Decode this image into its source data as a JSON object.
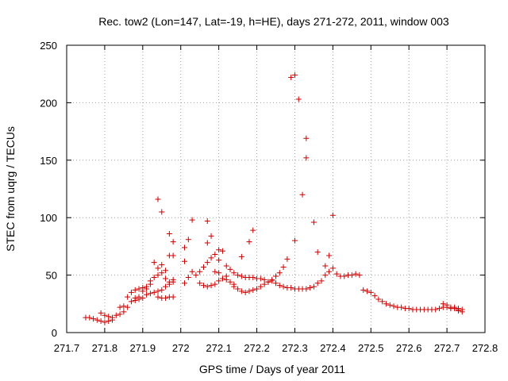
{
  "chart_data": {
    "type": "scatter",
    "title": "Rec. tow2 (Lon=147, Lat=-19, h=HE), days 271-272, 2011, window 003",
    "xlabel": "GPS time / Days of year 2011",
    "ylabel": "STEC from uqrg / TECUs",
    "xlim": [
      271.7,
      272.8
    ],
    "ylim": [
      0,
      250
    ],
    "x_ticks": [
      "271.7",
      "271.8",
      "271.9",
      "272",
      "272.1",
      "272.2",
      "272.3",
      "272.4",
      "272.5",
      "272.6",
      "272.7",
      "272.8"
    ],
    "y_ticks": [
      "0",
      "50",
      "100",
      "150",
      "200",
      "250"
    ],
    "grid": true,
    "marker": "+",
    "color": "#cc0000",
    "series": [
      {
        "points": [
          [
            271.75,
            13
          ],
          [
            271.76,
            13
          ],
          [
            271.77,
            12
          ],
          [
            271.78,
            11
          ],
          [
            271.79,
            10
          ],
          [
            271.8,
            9
          ],
          [
            271.81,
            10
          ],
          [
            271.82,
            11
          ],
          [
            271.79,
            17
          ],
          [
            271.8,
            15
          ],
          [
            271.81,
            14
          ],
          [
            271.82,
            13
          ],
          [
            271.83,
            15
          ],
          [
            271.84,
            16
          ],
          [
            271.85,
            18
          ],
          [
            271.84,
            22
          ],
          [
            271.85,
            23
          ],
          [
            271.86,
            22
          ],
          [
            271.87,
            27
          ],
          [
            271.88,
            30
          ],
          [
            271.89,
            31
          ],
          [
            271.86,
            31
          ],
          [
            271.87,
            35
          ],
          [
            271.88,
            37
          ],
          [
            271.89,
            38
          ],
          [
            271.9,
            39
          ],
          [
            271.91,
            40
          ],
          [
            271.92,
            42
          ],
          [
            271.88,
            28
          ],
          [
            271.89,
            29
          ],
          [
            271.9,
            30
          ],
          [
            271.91,
            33
          ],
          [
            271.92,
            34
          ],
          [
            271.93,
            35
          ],
          [
            271.94,
            36
          ],
          [
            271.95,
            37
          ],
          [
            271.9,
            36
          ],
          [
            271.91,
            38
          ],
          [
            271.92,
            45
          ],
          [
            271.93,
            48
          ],
          [
            271.94,
            50
          ],
          [
            271.95,
            52
          ],
          [
            271.96,
            54
          ],
          [
            271.93,
            61
          ],
          [
            271.94,
            56
          ],
          [
            271.95,
            59
          ],
          [
            271.96,
            47
          ],
          [
            271.97,
            44
          ],
          [
            271.98,
            44
          ],
          [
            271.94,
            116
          ],
          [
            271.95,
            105
          ],
          [
            271.97,
            86
          ],
          [
            271.98,
            79
          ],
          [
            271.97,
            67
          ],
          [
            271.98,
            67
          ],
          [
            271.94,
            31
          ],
          [
            271.95,
            30
          ],
          [
            271.96,
            30
          ],
          [
            271.97,
            31
          ],
          [
            271.98,
            31
          ],
          [
            271.96,
            40
          ],
          [
            271.97,
            42
          ],
          [
            271.98,
            46
          ],
          [
            272.01,
            43
          ],
          [
            272.02,
            48
          ],
          [
            272.03,
            53
          ],
          [
            272.04,
            50
          ],
          [
            272.05,
            53
          ],
          [
            272.06,
            57
          ],
          [
            272.07,
            61
          ],
          [
            272.01,
            62
          ],
          [
            272.01,
            74
          ],
          [
            272.02,
            81
          ],
          [
            272.03,
            98
          ],
          [
            272.07,
            97
          ],
          [
            272.07,
            78
          ],
          [
            272.08,
            84
          ],
          [
            272.05,
            43
          ],
          [
            272.06,
            41
          ],
          [
            272.07,
            40
          ],
          [
            272.08,
            41
          ],
          [
            272.09,
            42
          ],
          [
            272.1,
            45
          ],
          [
            272.11,
            47
          ],
          [
            272.12,
            49
          ],
          [
            272.08,
            65
          ],
          [
            272.09,
            68
          ],
          [
            272.1,
            72
          ],
          [
            272.1,
            63
          ],
          [
            272.11,
            71
          ],
          [
            272.12,
            58
          ],
          [
            272.09,
            53
          ],
          [
            272.1,
            52
          ],
          [
            272.11,
            47
          ],
          [
            272.12,
            46
          ],
          [
            272.13,
            44
          ],
          [
            272.14,
            42
          ],
          [
            272.13,
            55
          ],
          [
            272.14,
            52
          ],
          [
            272.15,
            50
          ],
          [
            272.16,
            49
          ],
          [
            272.17,
            48
          ],
          [
            272.18,
            48
          ],
          [
            272.19,
            48
          ],
          [
            272.2,
            47
          ],
          [
            272.21,
            47
          ],
          [
            272.22,
            46
          ],
          [
            272.14,
            40
          ],
          [
            272.15,
            38
          ],
          [
            272.16,
            36
          ],
          [
            272.17,
            35
          ],
          [
            272.18,
            36
          ],
          [
            272.19,
            37
          ],
          [
            272.2,
            38
          ],
          [
            272.21,
            40
          ],
          [
            272.22,
            42
          ],
          [
            272.23,
            44
          ],
          [
            272.24,
            45
          ],
          [
            272.16,
            66
          ],
          [
            272.18,
            79
          ],
          [
            272.19,
            89
          ],
          [
            272.23,
            44
          ],
          [
            272.24,
            46
          ],
          [
            272.25,
            49
          ],
          [
            272.26,
            52
          ],
          [
            272.27,
            57
          ],
          [
            272.28,
            64
          ],
          [
            272.25,
            43
          ],
          [
            272.26,
            41
          ],
          [
            272.27,
            40
          ],
          [
            272.28,
            39
          ],
          [
            272.29,
            39
          ],
          [
            272.3,
            38
          ],
          [
            272.31,
            38
          ],
          [
            272.32,
            38
          ],
          [
            272.33,
            38
          ],
          [
            272.34,
            39
          ],
          [
            272.29,
            222
          ],
          [
            272.3,
            224
          ],
          [
            272.31,
            203
          ],
          [
            272.32,
            120
          ],
          [
            272.33,
            169
          ],
          [
            272.33,
            152
          ],
          [
            272.35,
            96
          ],
          [
            272.3,
            80
          ],
          [
            272.35,
            40
          ],
          [
            272.36,
            43
          ],
          [
            272.37,
            45
          ],
          [
            272.38,
            50
          ],
          [
            272.39,
            53
          ],
          [
            272.4,
            56
          ],
          [
            272.36,
            70
          ],
          [
            272.38,
            58
          ],
          [
            272.39,
            67
          ],
          [
            272.4,
            102
          ],
          [
            272.41,
            51
          ],
          [
            272.42,
            49
          ],
          [
            272.43,
            49
          ],
          [
            272.44,
            50
          ],
          [
            272.45,
            50
          ],
          [
            272.46,
            51
          ],
          [
            272.47,
            50
          ],
          [
            272.48,
            37
          ],
          [
            272.49,
            36
          ],
          [
            272.5,
            35
          ],
          [
            272.51,
            32
          ],
          [
            272.52,
            29
          ],
          [
            272.53,
            27
          ],
          [
            272.54,
            25
          ],
          [
            272.55,
            24
          ],
          [
            272.56,
            23
          ],
          [
            272.57,
            22
          ],
          [
            272.58,
            22
          ],
          [
            272.59,
            21
          ],
          [
            272.6,
            21
          ],
          [
            272.61,
            20
          ],
          [
            272.62,
            20
          ],
          [
            272.63,
            20
          ],
          [
            272.64,
            20
          ],
          [
            272.65,
            20
          ],
          [
            272.66,
            20
          ],
          [
            272.67,
            20
          ],
          [
            272.68,
            21
          ],
          [
            272.69,
            22
          ],
          [
            272.7,
            22
          ],
          [
            272.71,
            21
          ],
          [
            272.72,
            21
          ],
          [
            272.73,
            20
          ],
          [
            272.69,
            25
          ],
          [
            272.7,
            24
          ],
          [
            272.71,
            22
          ],
          [
            272.72,
            22
          ],
          [
            272.73,
            21
          ],
          [
            272.74,
            20
          ],
          [
            272.74,
            18
          ],
          [
            272.73,
            19
          ]
        ]
      }
    ]
  }
}
